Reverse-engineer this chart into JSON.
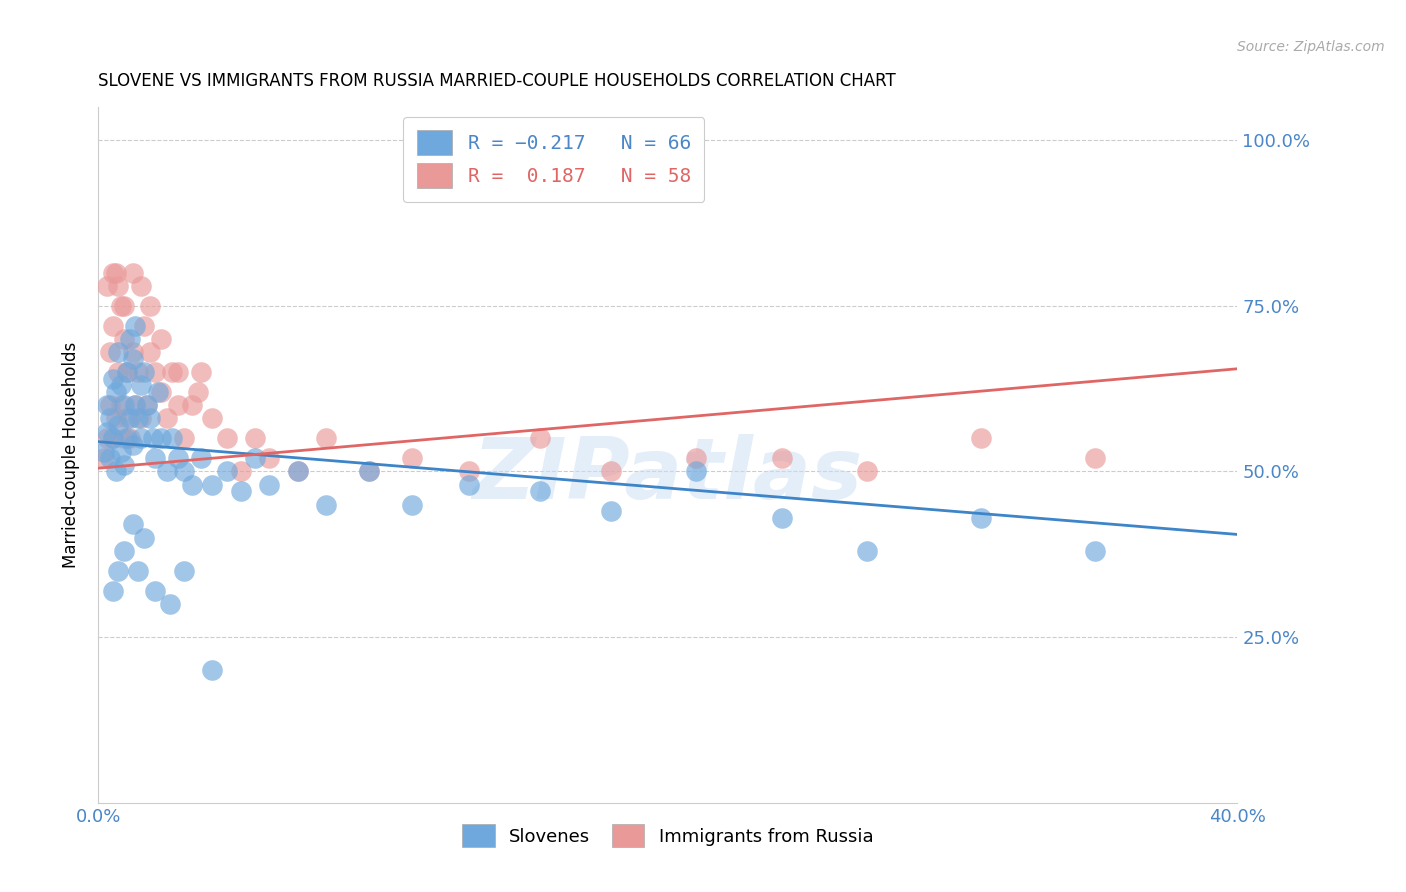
{
  "title": "SLOVENE VS IMMIGRANTS FROM RUSSIA MARRIED-COUPLE HOUSEHOLDS CORRELATION CHART",
  "source": "Source: ZipAtlas.com",
  "ylabel": "Married-couple Households",
  "xlim": [
    0.0,
    0.4
  ],
  "ylim": [
    0.0,
    1.05
  ],
  "yticks": [
    0.25,
    0.5,
    0.75,
    1.0
  ],
  "ytick_labels": [
    "25.0%",
    "50.0%",
    "75.0%",
    "100.0%"
  ],
  "xticks": [
    0.0,
    0.08,
    0.16,
    0.24,
    0.32,
    0.4
  ],
  "xtick_labels": [
    "0.0%",
    "",
    "",
    "",
    "",
    "40.0%"
  ],
  "blue_color": "#6fa8dc",
  "pink_color": "#ea9999",
  "blue_line_color": "#3d85c8",
  "pink_line_color": "#e06666",
  "watermark": "ZIPatlas",
  "slovenes_x": [
    0.002,
    0.003,
    0.003,
    0.004,
    0.004,
    0.005,
    0.005,
    0.006,
    0.006,
    0.007,
    0.007,
    0.008,
    0.008,
    0.009,
    0.009,
    0.01,
    0.01,
    0.011,
    0.011,
    0.012,
    0.012,
    0.013,
    0.013,
    0.014,
    0.015,
    0.015,
    0.016,
    0.017,
    0.018,
    0.019,
    0.02,
    0.021,
    0.022,
    0.024,
    0.026,
    0.028,
    0.03,
    0.033,
    0.036,
    0.04,
    0.045,
    0.05,
    0.055,
    0.06,
    0.07,
    0.08,
    0.095,
    0.11,
    0.13,
    0.155,
    0.18,
    0.21,
    0.24,
    0.27,
    0.31,
    0.35,
    0.005,
    0.007,
    0.009,
    0.012,
    0.014,
    0.016,
    0.02,
    0.025,
    0.03,
    0.04
  ],
  "slovenes_y": [
    0.53,
    0.56,
    0.6,
    0.52,
    0.58,
    0.55,
    0.64,
    0.5,
    0.62,
    0.57,
    0.68,
    0.53,
    0.63,
    0.51,
    0.6,
    0.55,
    0.65,
    0.58,
    0.7,
    0.54,
    0.67,
    0.6,
    0.72,
    0.58,
    0.55,
    0.63,
    0.65,
    0.6,
    0.58,
    0.55,
    0.52,
    0.62,
    0.55,
    0.5,
    0.55,
    0.52,
    0.5,
    0.48,
    0.52,
    0.48,
    0.5,
    0.47,
    0.52,
    0.48,
    0.5,
    0.45,
    0.5,
    0.45,
    0.48,
    0.47,
    0.44,
    0.5,
    0.43,
    0.38,
    0.43,
    0.38,
    0.32,
    0.35,
    0.38,
    0.42,
    0.35,
    0.4,
    0.32,
    0.3,
    0.35,
    0.2
  ],
  "russia_x": [
    0.002,
    0.003,
    0.004,
    0.004,
    0.005,
    0.005,
    0.006,
    0.006,
    0.007,
    0.008,
    0.008,
    0.009,
    0.009,
    0.01,
    0.01,
    0.011,
    0.012,
    0.013,
    0.014,
    0.015,
    0.016,
    0.017,
    0.018,
    0.02,
    0.022,
    0.024,
    0.026,
    0.028,
    0.03,
    0.033,
    0.036,
    0.04,
    0.045,
    0.05,
    0.055,
    0.06,
    0.07,
    0.08,
    0.095,
    0.11,
    0.13,
    0.155,
    0.18,
    0.21,
    0.24,
    0.27,
    0.31,
    0.35,
    0.003,
    0.005,
    0.007,
    0.009,
    0.012,
    0.015,
    0.018,
    0.022,
    0.028,
    0.035
  ],
  "russia_y": [
    0.52,
    0.55,
    0.6,
    0.68,
    0.55,
    0.72,
    0.58,
    0.8,
    0.65,
    0.6,
    0.75,
    0.55,
    0.7,
    0.58,
    0.65,
    0.55,
    0.68,
    0.6,
    0.65,
    0.58,
    0.72,
    0.6,
    0.68,
    0.65,
    0.62,
    0.58,
    0.65,
    0.6,
    0.55,
    0.6,
    0.65,
    0.58,
    0.55,
    0.5,
    0.55,
    0.52,
    0.5,
    0.55,
    0.5,
    0.52,
    0.5,
    0.55,
    0.5,
    0.52,
    0.52,
    0.5,
    0.55,
    0.52,
    0.78,
    0.8,
    0.78,
    0.75,
    0.8,
    0.78,
    0.75,
    0.7,
    0.65,
    0.62
  ],
  "blue_trend_x": [
    0.0,
    0.4
  ],
  "blue_trend_y": [
    0.545,
    0.405
  ],
  "pink_trend_x": [
    0.0,
    0.4
  ],
  "pink_trend_y": [
    0.505,
    0.655
  ]
}
